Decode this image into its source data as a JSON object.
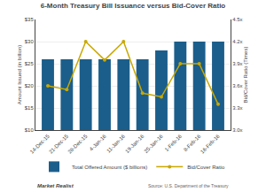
{
  "chart_data": {
    "type": "bar",
    "title": "6-Month Treasury Bill Issuance versus Bid-Cover Ratio",
    "categories": [
      "14-Dec-15",
      "21-Dec-15",
      "28-Dec-15",
      "4-Jan-16",
      "11-Jan-16",
      "19-Jan-16",
      "25-Jan-16",
      "1-Feb-16",
      "8-Feb-16",
      "16-Feb-16"
    ],
    "series": [
      {
        "name": "Total Offered Amount ($ billions)",
        "type": "bar",
        "color": "#1b5e8b",
        "values": [
          26,
          26,
          26,
          26,
          26,
          26,
          28,
          30,
          30,
          30
        ]
      },
      {
        "name": "Bid/Cover Ratio",
        "type": "line",
        "color": "#c8a800",
        "marker": "circle",
        "axis": "y2",
        "values": [
          3.6,
          3.55,
          4.2,
          3.95,
          4.2,
          3.5,
          3.45,
          3.9,
          3.9,
          3.35
        ]
      }
    ],
    "ylabel": "Amount Issued (in billion)",
    "y2label": "Bid/Cover Ratio (Times)",
    "ylim": [
      10,
      35
    ],
    "yticks": [
      {
        "value": 10,
        "label": "$10"
      },
      {
        "value": 15,
        "label": "$15"
      },
      {
        "value": 20,
        "label": "$20"
      },
      {
        "value": 25,
        "label": "$25"
      },
      {
        "value": 30,
        "label": "$30"
      },
      {
        "value": 35,
        "label": "$35"
      }
    ],
    "y2lim": [
      3.0,
      4.5
    ],
    "y2ticks": [
      {
        "value": 3.0,
        "label": "3.0x"
      },
      {
        "value": 3.3,
        "label": "3.3x"
      },
      {
        "value": 3.6,
        "label": "3.6x"
      },
      {
        "value": 3.9,
        "label": "3.9x"
      },
      {
        "value": 4.2,
        "label": "4.2x"
      },
      {
        "value": 4.5,
        "label": "4.5x"
      }
    ],
    "grid": true,
    "legend": "bottom",
    "annotations": [
      "Source: U.S. Department of the Treasury",
      "Market Realist"
    ]
  }
}
